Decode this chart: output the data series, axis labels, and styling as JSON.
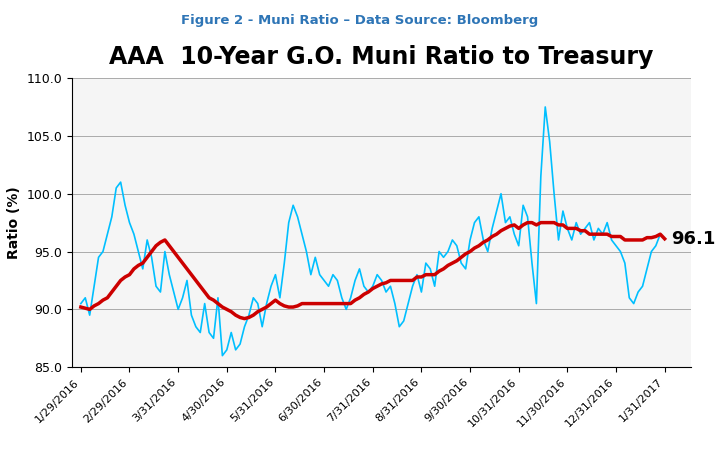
{
  "figure_label": "Figure 2 - Muni Ratio – Data Source: Bloomberg",
  "title": "AAA  10-Year G.O. Muni Ratio to Treasury",
  "ylabel": "Ratio (%)",
  "ylim": [
    85.0,
    110.0
  ],
  "yticks": [
    85.0,
    90.0,
    95.0,
    100.0,
    105.0,
    110.0
  ],
  "xtick_labels": [
    "1/29/2016",
    "2/29/2016",
    "3/31/2016",
    "4/30/2016",
    "5/31/2016",
    "6/30/2016",
    "7/31/2016",
    "8/31/2016",
    "9/30/2016",
    "10/31/2016",
    "11/30/2016",
    "12/31/2016",
    "1/31/2017"
  ],
  "mid_price_color": "#00BFFF",
  "smavg_color": "#CC0000",
  "last_value": "96.1",
  "last_value_fontsize": 13,
  "title_fontsize": 17,
  "figure_label_color": "#2E75B6",
  "background_color": "#FFFFFF",
  "plot_bg_color": "#F0F0F0",
  "mid_price": [
    90.5,
    91.0,
    89.5,
    92.0,
    94.5,
    95.0,
    96.5,
    98.0,
    100.5,
    101.0,
    99.0,
    97.5,
    96.5,
    95.0,
    93.5,
    96.0,
    94.5,
    92.0,
    91.5,
    95.0,
    93.0,
    91.5,
    90.0,
    91.0,
    92.5,
    89.5,
    88.5,
    88.0,
    90.5,
    88.0,
    87.5,
    91.0,
    86.0,
    86.5,
    88.0,
    86.5,
    87.0,
    88.5,
    89.5,
    91.0,
    90.5,
    88.5,
    90.5,
    92.0,
    93.0,
    91.0,
    94.0,
    97.5,
    99.0,
    98.0,
    96.5,
    95.0,
    93.0,
    94.5,
    93.0,
    92.5,
    92.0,
    93.0,
    92.5,
    91.0,
    90.0,
    91.0,
    92.5,
    93.5,
    92.0,
    91.5,
    92.0,
    93.0,
    92.5,
    91.5,
    92.0,
    90.5,
    88.5,
    89.0,
    90.5,
    92.0,
    93.0,
    91.5,
    94.0,
    93.5,
    92.0,
    95.0,
    94.5,
    95.0,
    96.0,
    95.5,
    94.0,
    93.5,
    96.0,
    97.5,
    98.0,
    96.0,
    95.0,
    97.0,
    98.5,
    100.0,
    97.5,
    98.0,
    96.5,
    95.5,
    99.0,
    98.0,
    94.0,
    90.5,
    101.5,
    107.5,
    104.5,
    100.0,
    96.0,
    98.5,
    97.0,
    96.0,
    97.5,
    96.5,
    97.0,
    97.5,
    96.0,
    97.0,
    96.5,
    97.5,
    96.0,
    95.5,
    95.0,
    94.0,
    91.0,
    90.5,
    91.5,
    92.0,
    93.5,
    95.0,
    95.5,
    96.5,
    96.1
  ],
  "smavg": [
    90.2,
    90.1,
    90.0,
    90.3,
    90.5,
    90.8,
    91.0,
    91.5,
    92.0,
    92.5,
    92.8,
    93.0,
    93.5,
    93.8,
    94.0,
    94.5,
    95.0,
    95.5,
    95.8,
    96.0,
    95.5,
    95.0,
    94.5,
    94.0,
    93.5,
    93.0,
    92.5,
    92.0,
    91.5,
    91.0,
    90.8,
    90.5,
    90.2,
    90.0,
    89.8,
    89.5,
    89.3,
    89.2,
    89.3,
    89.5,
    89.8,
    90.0,
    90.2,
    90.5,
    90.8,
    90.5,
    90.3,
    90.2,
    90.2,
    90.3,
    90.5,
    90.5,
    90.5,
    90.5,
    90.5,
    90.5,
    90.5,
    90.5,
    90.5,
    90.5,
    90.5,
    90.5,
    90.8,
    91.0,
    91.3,
    91.5,
    91.8,
    92.0,
    92.2,
    92.3,
    92.5,
    92.5,
    92.5,
    92.5,
    92.5,
    92.5,
    92.8,
    92.8,
    93.0,
    93.0,
    93.0,
    93.3,
    93.5,
    93.8,
    94.0,
    94.2,
    94.5,
    94.8,
    95.0,
    95.3,
    95.5,
    95.8,
    96.0,
    96.3,
    96.5,
    96.8,
    97.0,
    97.2,
    97.3,
    97.0,
    97.3,
    97.5,
    97.5,
    97.3,
    97.5,
    97.5,
    97.5,
    97.5,
    97.3,
    97.3,
    97.0,
    97.0,
    97.0,
    96.8,
    96.8,
    96.5,
    96.5,
    96.5,
    96.5,
    96.5,
    96.3,
    96.3,
    96.3,
    96.0,
    96.0,
    96.0,
    96.0,
    96.0,
    96.2,
    96.2,
    96.3,
    96.5,
    96.1
  ]
}
